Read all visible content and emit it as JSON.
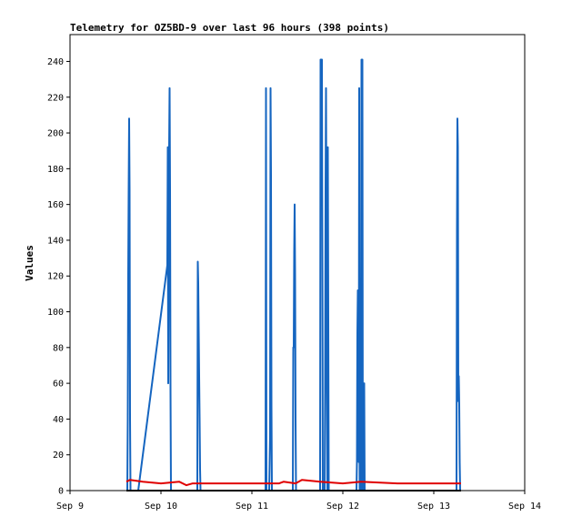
{
  "chart_data": {
    "type": "line",
    "title": "Telemetry for OZ5BD-9 over last 96 hours (398 points)",
    "xlabel": "",
    "ylabel": "Values",
    "xlim": [
      0,
      5
    ],
    "ylim": [
      0,
      255
    ],
    "x_ticks": [
      {
        "x": 0,
        "label": "Sep 9"
      },
      {
        "x": 1,
        "label": "Sep 10"
      },
      {
        "x": 2,
        "label": "Sep 11"
      },
      {
        "x": 3,
        "label": "Sep 12"
      },
      {
        "x": 4,
        "label": "Sep 13"
      },
      {
        "x": 5,
        "label": "Sep 14"
      }
    ],
    "y_ticks": [
      0,
      20,
      40,
      60,
      80,
      100,
      120,
      140,
      160,
      180,
      200,
      220,
      240
    ],
    "grid": false,
    "legend": "none",
    "series": [
      {
        "color": "#1565c0",
        "points": [
          [
            0.62,
            0
          ],
          [
            0.63,
            0
          ],
          [
            0.635,
            40
          ],
          [
            0.64,
            120
          ],
          [
            0.645,
            168
          ],
          [
            0.65,
            208
          ],
          [
            0.655,
            168
          ],
          [
            0.66,
            40
          ],
          [
            0.665,
            0
          ],
          [
            0.75,
            0
          ],
          [
            1.07,
            126
          ],
          [
            1.075,
            192
          ],
          [
            1.08,
            60
          ],
          [
            1.085,
            128
          ],
          [
            1.09,
            192
          ],
          [
            1.095,
            225
          ],
          [
            1.1,
            168
          ],
          [
            1.105,
            56
          ],
          [
            1.11,
            0
          ],
          [
            1.4,
            0
          ],
          [
            1.405,
            128
          ],
          [
            1.41,
            116
          ],
          [
            1.415,
            90
          ],
          [
            1.42,
            64
          ],
          [
            1.425,
            40
          ],
          [
            1.43,
            12
          ],
          [
            1.435,
            0
          ],
          [
            2.15,
            0
          ],
          [
            2.155,
            225
          ],
          [
            2.16,
            0
          ],
          [
            2.19,
            0
          ],
          [
            2.195,
            15
          ],
          [
            2.2,
            32
          ],
          [
            2.205,
            225
          ],
          [
            2.21,
            176
          ],
          [
            2.215,
            48
          ],
          [
            2.22,
            0
          ],
          [
            2.45,
            0
          ],
          [
            2.455,
            80
          ],
          [
            2.46,
            80
          ],
          [
            2.465,
            133
          ],
          [
            2.47,
            160
          ],
          [
            2.475,
            120
          ],
          [
            2.48,
            40
          ],
          [
            2.485,
            0
          ],
          [
            2.75,
            0
          ],
          [
            2.755,
            241
          ],
          [
            2.76,
            241
          ],
          [
            2.765,
            241
          ],
          [
            2.77,
            241
          ],
          [
            2.78,
            0
          ],
          [
            2.8,
            0
          ],
          [
            2.805,
            56
          ],
          [
            2.81,
            168
          ],
          [
            2.815,
            225
          ],
          [
            2.82,
            144
          ],
          [
            2.825,
            58
          ],
          [
            2.83,
            0
          ],
          [
            2.835,
            192
          ],
          [
            2.84,
            96
          ],
          [
            2.845,
            0
          ],
          [
            3.15,
            0
          ],
          [
            3.155,
            16
          ],
          [
            3.16,
            88
          ],
          [
            3.165,
            112
          ],
          [
            3.17,
            112
          ],
          [
            3.175,
            16
          ],
          [
            3.18,
            225
          ],
          [
            3.185,
            0
          ],
          [
            3.2,
            0
          ],
          [
            3.205,
            241
          ],
          [
            3.21,
            180
          ],
          [
            3.215,
            241
          ],
          [
            3.22,
            0
          ],
          [
            3.23,
            0
          ],
          [
            3.235,
            60
          ],
          [
            3.24,
            0
          ],
          [
            4.25,
            0
          ],
          [
            4.255,
            145
          ],
          [
            4.26,
            208
          ],
          [
            4.265,
            192
          ],
          [
            4.27,
            50
          ],
          [
            4.275,
            64
          ],
          [
            4.28,
            48
          ],
          [
            4.285,
            16
          ],
          [
            4.29,
            0
          ]
        ]
      },
      {
        "color": "#e00000",
        "points": [
          [
            0.62,
            5
          ],
          [
            0.66,
            6
          ],
          [
            0.8,
            5
          ],
          [
            1.0,
            4
          ],
          [
            1.2,
            5
          ],
          [
            1.28,
            3
          ],
          [
            1.35,
            4
          ],
          [
            1.5,
            4
          ],
          [
            2.0,
            4
          ],
          [
            2.3,
            4
          ],
          [
            2.35,
            5
          ],
          [
            2.48,
            4
          ],
          [
            2.55,
            6
          ],
          [
            2.75,
            5
          ],
          [
            3.0,
            4
          ],
          [
            3.2,
            5
          ],
          [
            3.6,
            4
          ],
          [
            4.0,
            4
          ],
          [
            4.3,
            4
          ]
        ]
      },
      {
        "color": "#000000",
        "points": [
          [
            0.62,
            0
          ],
          [
            4.3,
            0
          ]
        ]
      }
    ]
  }
}
